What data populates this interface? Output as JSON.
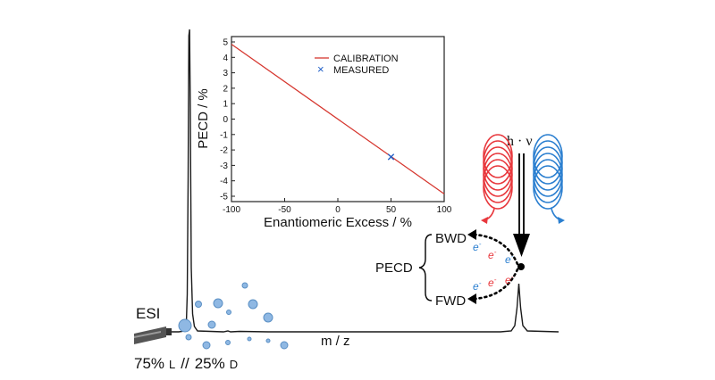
{
  "spectrum": {
    "x_label": "m / z",
    "source_label": "ESI",
    "sample_l": "75%",
    "sample_l_unit": "L",
    "sample_sep": "//",
    "sample_d": "25%",
    "sample_d_unit": "D"
  },
  "scheme": {
    "photon_label": "h · ν",
    "bwd_label": "BWD",
    "fwd_label": "FWD",
    "pecd_label": "PECD",
    "electron": "e",
    "electron_charge": "-",
    "colors": {
      "left_helix": "#e8383d",
      "right_helix": "#2b7fd0",
      "arrow": "#000000"
    }
  },
  "chart_data": {
    "type": "line",
    "xlabel": "Enantiomeric Excess / %",
    "ylabel": "PECD / %",
    "xlim": [
      -100,
      100
    ],
    "ylim": [
      -5,
      5
    ],
    "xticks": [
      -100,
      -50,
      0,
      50,
      100
    ],
    "yticks": [
      5,
      4,
      3,
      2,
      1,
      0,
      -1,
      -2,
      -3,
      -4,
      -5
    ],
    "legend_position": "top-right",
    "series": [
      {
        "name": "CALIBRATION",
        "kind": "line",
        "color": "#d6372f",
        "x": [
          -100,
          100
        ],
        "y": [
          4.85,
          -4.85
        ]
      },
      {
        "name": "MEASURED",
        "kind": "marker",
        "marker": "x",
        "color": "#1f5fc8",
        "x": [
          50
        ],
        "y": [
          -2.45
        ]
      }
    ]
  }
}
